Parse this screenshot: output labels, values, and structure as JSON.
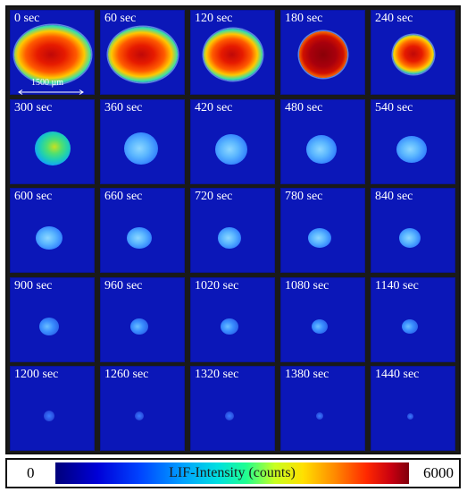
{
  "panels": [
    {
      "label": "0 sec"
    },
    {
      "label": "60 sec"
    },
    {
      "label": "120 sec"
    },
    {
      "label": "180 sec"
    },
    {
      "label": "240 sec"
    },
    {
      "label": "300 sec"
    },
    {
      "label": "360 sec"
    },
    {
      "label": "420 sec"
    },
    {
      "label": "480 sec"
    },
    {
      "label": "540 sec"
    },
    {
      "label": "600 sec"
    },
    {
      "label": "660 sec"
    },
    {
      "label": "720 sec"
    },
    {
      "label": "780 sec"
    },
    {
      "label": "840 sec"
    },
    {
      "label": "900 sec"
    },
    {
      "label": "960 sec"
    },
    {
      "label": "1020 sec"
    },
    {
      "label": "1080 sec"
    },
    {
      "label": "1140 sec"
    },
    {
      "label": "1200 sec"
    },
    {
      "label": "1260 sec"
    },
    {
      "label": "1320 sec"
    },
    {
      "label": "1380 sec"
    },
    {
      "label": "1440 sec"
    }
  ],
  "scale_bar": {
    "label": "1500 µm"
  },
  "colorbar": {
    "min_label": "0",
    "max_label": "6000",
    "title": "LIF-Intensity (counts)"
  },
  "colors": {
    "background": "#0b17b8",
    "hot": "#e01000",
    "warm": "#ffb000",
    "cyan": "#20c0ff",
    "light_blue": "#6fb8ff"
  }
}
